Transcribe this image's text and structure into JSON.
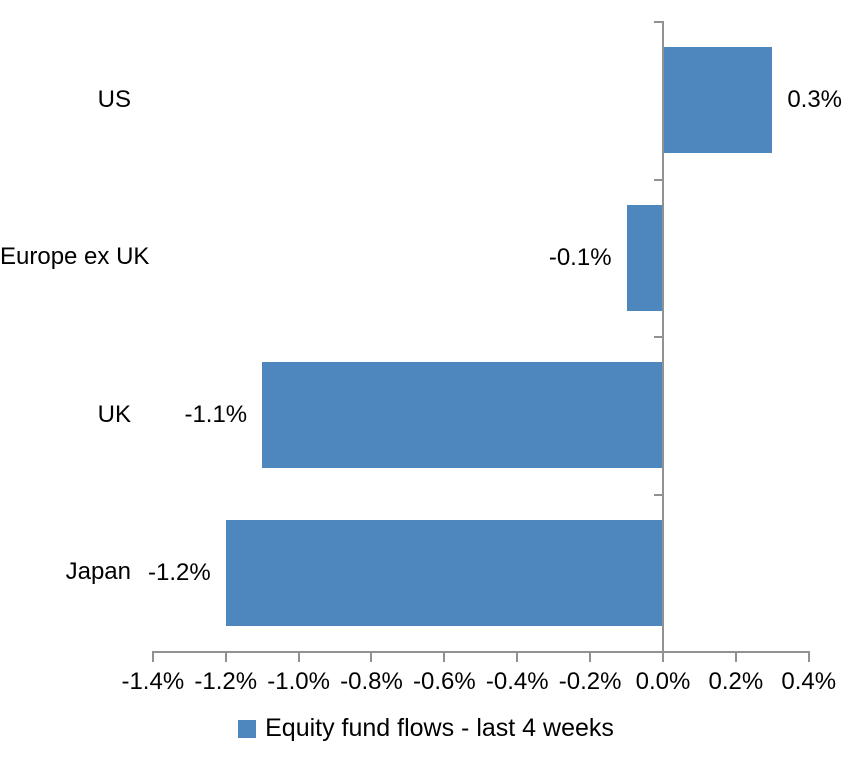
{
  "chart_data": {
    "type": "bar",
    "orientation": "horizontal",
    "title": "",
    "categories": [
      "US",
      "Europe ex UK",
      "UK",
      "Japan"
    ],
    "values": [
      0.3,
      -0.1,
      -1.1,
      -1.2
    ],
    "data_labels": [
      "0.3%",
      "-0.1%",
      "-1.1%",
      "-1.2%"
    ],
    "x_axis": {
      "ticks": [
        "-1.4%",
        "-1.2%",
        "-1.0%",
        "-0.8%",
        "-0.6%",
        "-0.4%",
        "-0.2%",
        "0.0%",
        "0.2%",
        "0.4%"
      ],
      "tick_values": [
        -1.4,
        -1.2,
        -1.0,
        -0.8,
        -0.6,
        -0.4,
        -0.2,
        0.0,
        0.2,
        0.4
      ],
      "xlim": [
        -1.4,
        0.4
      ],
      "unit": "%"
    },
    "grid": false,
    "legend_position": "bottom",
    "legend": "Equity fund flows - last 4 weeks",
    "colors": {
      "bar": "#4E86BE",
      "axis": "#919191",
      "text": "#000000",
      "background": "#FFFFFF"
    }
  }
}
